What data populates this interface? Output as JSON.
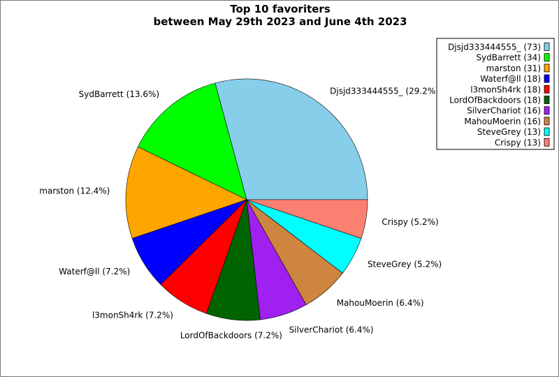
{
  "chart_data": {
    "type": "pie",
    "title": [
      "Top 10 favoriters",
      "between May 29th 2023 and June 4th 2023"
    ],
    "start_angle_deg": 0,
    "direction": "counterclockwise",
    "legend_position": "top-right",
    "slices": [
      {
        "name": "Djsjd333444555_",
        "value": 73,
        "percent_label": "29.2%",
        "color": "#87CEEB"
      },
      {
        "name": "SydBarrett",
        "value": 34,
        "percent_label": "13.6%",
        "color": "#00FF00"
      },
      {
        "name": "marston",
        "value": 31,
        "percent_label": "12.4%",
        "color": "#FFA500"
      },
      {
        "name": "Waterf@ll",
        "value": 18,
        "percent_label": "7.2%",
        "color": "#0000FF"
      },
      {
        "name": "l3monSh4rk",
        "value": 18,
        "percent_label": "7.2%",
        "color": "#FF0000"
      },
      {
        "name": "LordOfBackdoors",
        "value": 18,
        "percent_label": "7.2%",
        "color": "#006400"
      },
      {
        "name": "SilverChariot",
        "value": 16,
        "percent_label": "6.4%",
        "color": "#A020F0"
      },
      {
        "name": "MahouMoerin",
        "value": 16,
        "percent_label": "6.4%",
        "color": "#CD853F"
      },
      {
        "name": "SteveGrey",
        "value": 13,
        "percent_label": "5.2%",
        "color": "#00FFFF"
      },
      {
        "name": "Crispy",
        "value": 13,
        "percent_label": "5.2%",
        "color": "#FA8072"
      }
    ]
  }
}
